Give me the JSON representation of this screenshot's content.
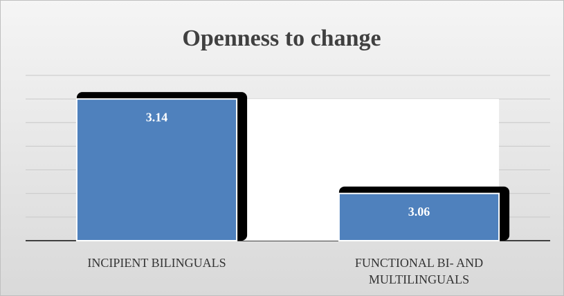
{
  "chart_data": {
    "type": "bar",
    "title": "Openness to change",
    "categories": [
      "INCIPIENT BILINGUALS",
      "FUNCTIONAL BI- AND MULTILINGUALS"
    ],
    "values": [
      3.14,
      3.06
    ],
    "color": "#4f81bd",
    "ylim": [
      3.02,
      3.16
    ],
    "yticks": [
      3.02,
      3.04,
      3.06,
      3.08,
      3.1,
      3.12,
      3.14,
      3.16
    ],
    "grid": true
  }
}
